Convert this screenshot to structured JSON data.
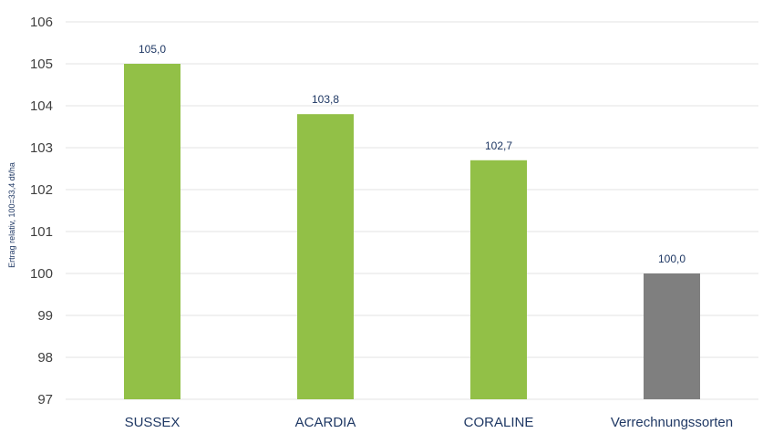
{
  "chart_data": {
    "type": "bar",
    "title": "",
    "xlabel": "",
    "ylabel": "Ertrag relativ, 100=33,4 dt/ha",
    "ylim": [
      97,
      106
    ],
    "yticks": [
      97,
      98,
      99,
      100,
      101,
      102,
      103,
      104,
      105,
      106
    ],
    "grid": true,
    "categories": [
      "SUSSEX",
      "ACARDIA",
      "CORALINE",
      "Verrechnungssorten"
    ],
    "values": [
      105.0,
      103.8,
      102.7,
      100.0
    ],
    "data_labels": [
      "105,0",
      "103,8",
      "102,7",
      "100,0"
    ],
    "bar_colors": [
      "#92c047",
      "#92c047",
      "#92c047",
      "#7f7f7f"
    ]
  }
}
